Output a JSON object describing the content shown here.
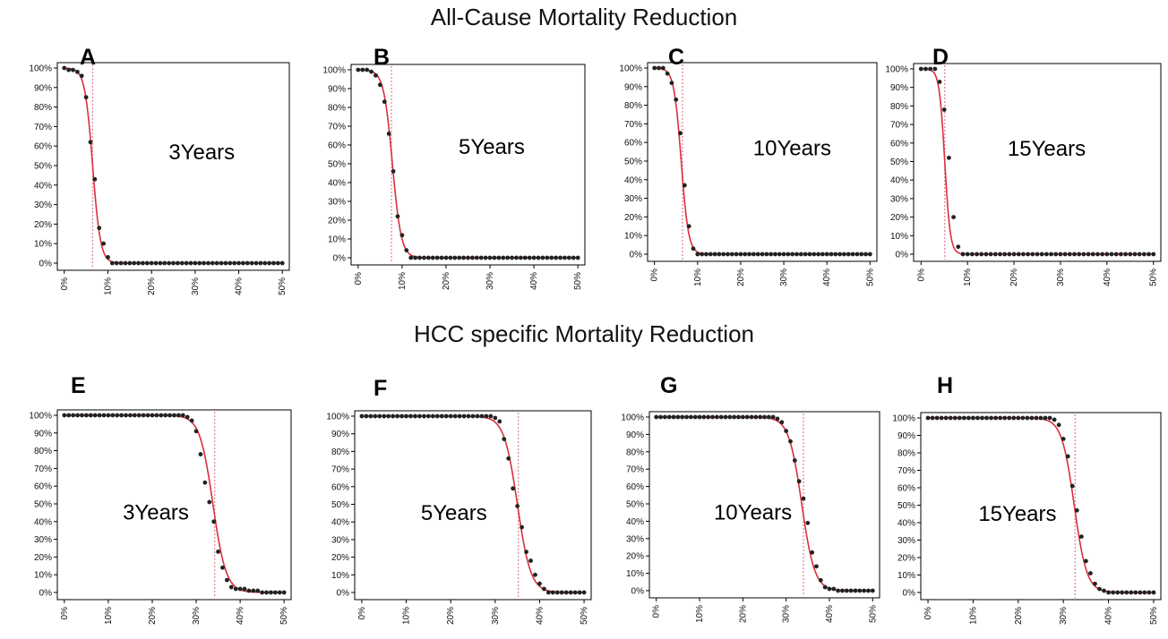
{
  "titles": {
    "top": "All-Cause Mortality Reduction",
    "bottom": "HCC specific Mortality Reduction"
  },
  "colors": {
    "curve": "#d9303c",
    "point": "#222222",
    "reference_line": "#e08a9a",
    "frame": "#000000"
  },
  "chart_data": [
    {
      "type": "scatter",
      "panel": "A",
      "annotation": "3Years",
      "x": [
        0,
        1,
        2,
        3,
        4,
        5,
        6,
        7,
        8,
        9,
        10,
        11,
        12,
        13,
        14,
        15,
        16,
        17,
        18,
        19,
        20,
        21,
        22,
        23,
        24,
        25,
        26,
        27,
        28,
        29,
        30,
        31,
        32,
        33,
        34,
        35,
        36,
        37,
        38,
        39,
        40,
        41,
        42,
        43,
        44,
        45,
        46,
        47,
        48,
        49,
        50
      ],
      "y": [
        100,
        99,
        99,
        98,
        96,
        85,
        62,
        43,
        18,
        10,
        3,
        0,
        0,
        0,
        0,
        0,
        0,
        0,
        0,
        0,
        0,
        0,
        0,
        0,
        0,
        0,
        0,
        0,
        0,
        0,
        0,
        0,
        0,
        0,
        0,
        0,
        0,
        0,
        0,
        0,
        0,
        0,
        0,
        0,
        0,
        0,
        0,
        0,
        0,
        0,
        0
      ],
      "curve": "logistic",
      "midpoint": 6.5,
      "scale": 0.9,
      "reference_x": 6.5,
      "x_ticks": [
        "0%",
        "10%",
        "20%",
        "30%",
        "40%",
        "50%"
      ],
      "y_ticks": [
        "0%",
        "10%",
        "20%",
        "30%",
        "40%",
        "50%",
        "60%",
        "70%",
        "80%",
        "90%",
        "100%"
      ],
      "xlim": [
        0,
        50
      ],
      "ylim": [
        0,
        100
      ]
    },
    {
      "type": "scatter",
      "panel": "B",
      "annotation": "5Years",
      "x": [
        0,
        1,
        2,
        3,
        4,
        5,
        6,
        7,
        8,
        9,
        10,
        11,
        12,
        13,
        14,
        15,
        16,
        17,
        18,
        19,
        20,
        21,
        22,
        23,
        24,
        25,
        26,
        27,
        28,
        29,
        30,
        31,
        32,
        33,
        34,
        35,
        36,
        37,
        38,
        39,
        40,
        41,
        42,
        43,
        44,
        45,
        46,
        47,
        48,
        49,
        50
      ],
      "y": [
        100,
        100,
        100,
        99,
        97,
        92,
        83,
        66,
        46,
        22,
        12,
        4,
        0,
        0,
        0,
        0,
        0,
        0,
        0,
        0,
        0,
        0,
        0,
        0,
        0,
        0,
        0,
        0,
        0,
        0,
        0,
        0,
        0,
        0,
        0,
        0,
        0,
        0,
        0,
        0,
        0,
        0,
        0,
        0,
        0,
        0,
        0,
        0,
        0,
        0,
        0
      ],
      "curve": "logistic",
      "midpoint": 7.8,
      "scale": 1.0,
      "reference_x": 7.6,
      "x_ticks": [
        "0%",
        "10%",
        "20%",
        "30%",
        "40%",
        "50%"
      ],
      "y_ticks": [
        "0%",
        "10%",
        "20%",
        "30%",
        "40%",
        "50%",
        "60%",
        "70%",
        "80%",
        "90%",
        "100%"
      ],
      "xlim": [
        0,
        50
      ],
      "ylim": [
        0,
        100
      ]
    },
    {
      "type": "scatter",
      "panel": "C",
      "annotation": "10Years",
      "x": [
        0,
        1,
        2,
        3,
        4,
        5,
        6,
        7,
        8,
        9,
        10,
        11,
        12,
        13,
        14,
        15,
        16,
        17,
        18,
        19,
        20,
        21,
        22,
        23,
        24,
        25,
        26,
        27,
        28,
        29,
        30,
        31,
        32,
        33,
        34,
        35,
        36,
        37,
        38,
        39,
        40,
        41,
        42,
        43,
        44,
        45,
        46,
        47,
        48,
        49,
        50
      ],
      "y": [
        100,
        100,
        100,
        97,
        92,
        83,
        65,
        37,
        15,
        3,
        0,
        0,
        0,
        0,
        0,
        0,
        0,
        0,
        0,
        0,
        0,
        0,
        0,
        0,
        0,
        0,
        0,
        0,
        0,
        0,
        0,
        0,
        0,
        0,
        0,
        0,
        0,
        0,
        0,
        0,
        0,
        0,
        0,
        0,
        0,
        0,
        0,
        0,
        0,
        0,
        0
      ],
      "curve": "logistic",
      "midpoint": 6.2,
      "scale": 0.85,
      "reference_x": 6.5,
      "x_ticks": [
        "0%",
        "10%",
        "20%",
        "30%",
        "40%",
        "50%"
      ],
      "y_ticks": [
        "0%",
        "10%",
        "20%",
        "30%",
        "40%",
        "50%",
        "60%",
        "70%",
        "80%",
        "90%",
        "100%"
      ],
      "xlim": [
        0,
        50
      ],
      "ylim": [
        0,
        100
      ]
    },
    {
      "type": "scatter",
      "panel": "D",
      "annotation": "15Years",
      "x": [
        0,
        1,
        2,
        3,
        4,
        5,
        6,
        7,
        8,
        9,
        10,
        11,
        12,
        13,
        14,
        15,
        16,
        17,
        18,
        19,
        20,
        21,
        22,
        23,
        24,
        25,
        26,
        27,
        28,
        29,
        30,
        31,
        32,
        33,
        34,
        35,
        36,
        37,
        38,
        39,
        40,
        41,
        42,
        43,
        44,
        45,
        46,
        47,
        48,
        49,
        50
      ],
      "y": [
        100,
        100,
        100,
        100,
        93,
        78,
        52,
        20,
        4,
        0,
        0,
        0,
        0,
        0,
        0,
        0,
        0,
        0,
        0,
        0,
        0,
        0,
        0,
        0,
        0,
        0,
        0,
        0,
        0,
        0,
        0,
        0,
        0,
        0,
        0,
        0,
        0,
        0,
        0,
        0,
        0,
        0,
        0,
        0,
        0,
        0,
        0,
        0,
        0,
        0,
        0
      ],
      "curve": "logistic",
      "midpoint": 5.1,
      "scale": 0.6,
      "reference_x": 5.1,
      "x_ticks": [
        "0%",
        "10%",
        "20%",
        "30%",
        "40%",
        "50%"
      ],
      "y_ticks": [
        "0%",
        "10%",
        "20%",
        "30%",
        "40%",
        "50%",
        "60%",
        "70%",
        "80%",
        "90%",
        "100%"
      ],
      "xlim": [
        0,
        50
      ],
      "ylim": [
        0,
        100
      ]
    },
    {
      "type": "scatter",
      "panel": "E",
      "annotation": "3Years",
      "x": [
        0,
        1,
        2,
        3,
        4,
        5,
        6,
        7,
        8,
        9,
        10,
        11,
        12,
        13,
        14,
        15,
        16,
        17,
        18,
        19,
        20,
        21,
        22,
        23,
        24,
        25,
        26,
        27,
        28,
        29,
        30,
        31,
        32,
        33,
        34,
        35,
        36,
        37,
        38,
        39,
        40,
        41,
        42,
        43,
        44,
        45,
        46,
        47,
        48,
        49,
        50
      ],
      "y": [
        100,
        100,
        100,
        100,
        100,
        100,
        100,
        100,
        100,
        100,
        100,
        100,
        100,
        100,
        100,
        100,
        100,
        100,
        100,
        100,
        100,
        100,
        100,
        100,
        100,
        100,
        100,
        100,
        99,
        97,
        91,
        78,
        62,
        51,
        40,
        23,
        14,
        7,
        3,
        2,
        2,
        2,
        1,
        1,
        1,
        0,
        0,
        0,
        0,
        0,
        0
      ],
      "curve": "logistic",
      "midpoint": 33.8,
      "scale": 1.5,
      "reference_x": 34.2,
      "x_ticks": [
        "0%",
        "10%",
        "20%",
        "30%",
        "40%",
        "50%"
      ],
      "y_ticks": [
        "0%",
        "10%",
        "20%",
        "30%",
        "40%",
        "50%",
        "60%",
        "70%",
        "80%",
        "90%",
        "100%"
      ],
      "xlim": [
        0,
        50
      ],
      "ylim": [
        0,
        100
      ]
    },
    {
      "type": "scatter",
      "panel": "F",
      "annotation": "5Years",
      "x": [
        0,
        1,
        2,
        3,
        4,
        5,
        6,
        7,
        8,
        9,
        10,
        11,
        12,
        13,
        14,
        15,
        16,
        17,
        18,
        19,
        20,
        21,
        22,
        23,
        24,
        25,
        26,
        27,
        28,
        29,
        30,
        31,
        32,
        33,
        34,
        35,
        36,
        37,
        38,
        39,
        40,
        41,
        42,
        43,
        44,
        45,
        46,
        47,
        48,
        49,
        50
      ],
      "y": [
        100,
        100,
        100,
        100,
        100,
        100,
        100,
        100,
        100,
        100,
        100,
        100,
        100,
        100,
        100,
        100,
        100,
        100,
        100,
        100,
        100,
        100,
        100,
        100,
        100,
        100,
        100,
        100,
        100,
        100,
        99,
        97,
        87,
        76,
        59,
        49,
        37,
        23,
        18,
        10,
        5,
        2,
        0,
        0,
        0,
        0,
        0,
        0,
        0,
        0,
        0
      ],
      "curve": "logistic",
      "midpoint": 35.0,
      "scale": 1.5,
      "reference_x": 35.2,
      "x_ticks": [
        "0%",
        "10%",
        "20%",
        "30%",
        "40%",
        "50%"
      ],
      "y_ticks": [
        "0%",
        "10%",
        "20%",
        "30%",
        "40%",
        "50%",
        "60%",
        "70%",
        "80%",
        "90%",
        "100%"
      ],
      "xlim": [
        0,
        50
      ],
      "ylim": [
        0,
        100
      ]
    },
    {
      "type": "scatter",
      "panel": "G",
      "annotation": "10Years",
      "x": [
        0,
        1,
        2,
        3,
        4,
        5,
        6,
        7,
        8,
        9,
        10,
        11,
        12,
        13,
        14,
        15,
        16,
        17,
        18,
        19,
        20,
        21,
        22,
        23,
        24,
        25,
        26,
        27,
        28,
        29,
        30,
        31,
        32,
        33,
        34,
        35,
        36,
        37,
        38,
        39,
        40,
        41,
        42,
        43,
        44,
        45,
        46,
        47,
        48,
        49,
        50
      ],
      "y": [
        100,
        100,
        100,
        100,
        100,
        100,
        100,
        100,
        100,
        100,
        100,
        100,
        100,
        100,
        100,
        100,
        100,
        100,
        100,
        100,
        100,
        100,
        100,
        100,
        100,
        100,
        100,
        100,
        99,
        97,
        92,
        86,
        75,
        63,
        53,
        39,
        22,
        14,
        6,
        2,
        1,
        1,
        0,
        0,
        0,
        0,
        0,
        0,
        0,
        0,
        0
      ],
      "curve": "logistic",
      "midpoint": 33.6,
      "scale": 1.5,
      "reference_x": 34.0,
      "x_ticks": [
        "0%",
        "10%",
        "20%",
        "30%",
        "40%",
        "50%"
      ],
      "y_ticks": [
        "0%",
        "10%",
        "20%",
        "30%",
        "40%",
        "50%",
        "60%",
        "70%",
        "80%",
        "90%",
        "100%"
      ],
      "xlim": [
        0,
        50
      ],
      "ylim": [
        0,
        100
      ]
    },
    {
      "type": "scatter",
      "panel": "H",
      "annotation": "15Years",
      "x": [
        0,
        1,
        2,
        3,
        4,
        5,
        6,
        7,
        8,
        9,
        10,
        11,
        12,
        13,
        14,
        15,
        16,
        17,
        18,
        19,
        20,
        21,
        22,
        23,
        24,
        25,
        26,
        27,
        28,
        29,
        30,
        31,
        32,
        33,
        34,
        35,
        36,
        37,
        38,
        39,
        40,
        41,
        42,
        43,
        44,
        45,
        46,
        47,
        48,
        49,
        50
      ],
      "y": [
        100,
        100,
        100,
        100,
        100,
        100,
        100,
        100,
        100,
        100,
        100,
        100,
        100,
        100,
        100,
        100,
        100,
        100,
        100,
        100,
        100,
        100,
        100,
        100,
        100,
        100,
        100,
        100,
        99,
        96,
        88,
        78,
        61,
        47,
        32,
        18,
        11,
        5,
        2,
        1,
        0,
        0,
        0,
        0,
        0,
        0,
        0,
        0,
        0,
        0,
        0
      ],
      "curve": "logistic",
      "midpoint": 32.4,
      "scale": 1.4,
      "reference_x": 32.6,
      "x_ticks": [
        "0%",
        "10%",
        "20%",
        "30%",
        "40%",
        "50%"
      ],
      "y_ticks": [
        "0%",
        "10%",
        "20%",
        "30%",
        "40%",
        "50%",
        "60%",
        "70%",
        "80%",
        "90%",
        "100%"
      ],
      "xlim": [
        0,
        50
      ],
      "ylim": [
        0,
        100
      ]
    }
  ]
}
